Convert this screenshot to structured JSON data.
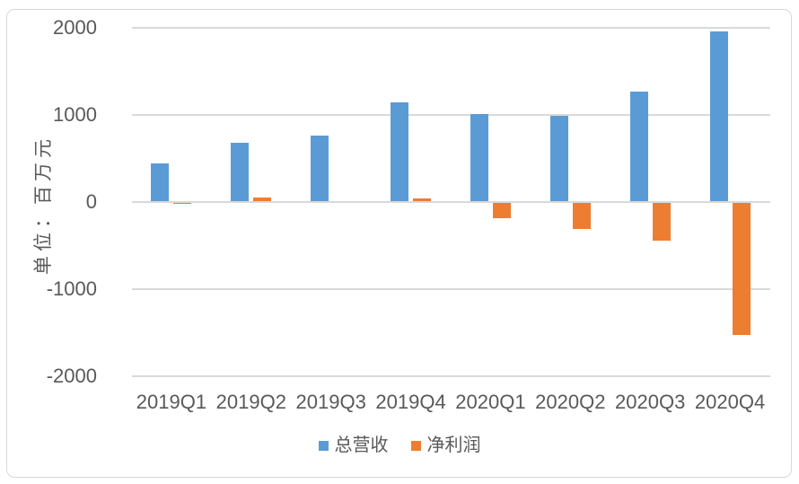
{
  "chart_data": {
    "type": "bar",
    "title": "",
    "categories": [
      "2019Q1",
      "2019Q2",
      "2019Q3",
      "2019Q4",
      "2020Q1",
      "2020Q2",
      "2020Q3",
      "2020Q4"
    ],
    "series": [
      {
        "name": "总营收",
        "color": "#5B9BD5",
        "values": [
          445,
          680,
          765,
          1145,
          1015,
          990,
          1270,
          1955
        ]
      },
      {
        "name": "净利润",
        "color": "#ED7D31",
        "values": [
          -20,
          50,
          0,
          40,
          -190,
          -310,
          -445,
          -1530
        ]
      }
    ],
    "xlabel": "",
    "ylabel": "单位：百万元",
    "y_axis": {
      "title": "单位：百万元",
      "ticks": [
        2000,
        1000,
        0,
        -1000,
        -2000
      ],
      "range": [
        -2000,
        2000
      ],
      "grid": true
    },
    "legend_position": "bottom"
  },
  "colors": {
    "background": "#FFFFFF",
    "border": "#D9D9D9",
    "gridline": "#D9D9D9",
    "text": "#595959",
    "series_blue": "#5B9BD5",
    "series_orange": "#ED7D31"
  }
}
